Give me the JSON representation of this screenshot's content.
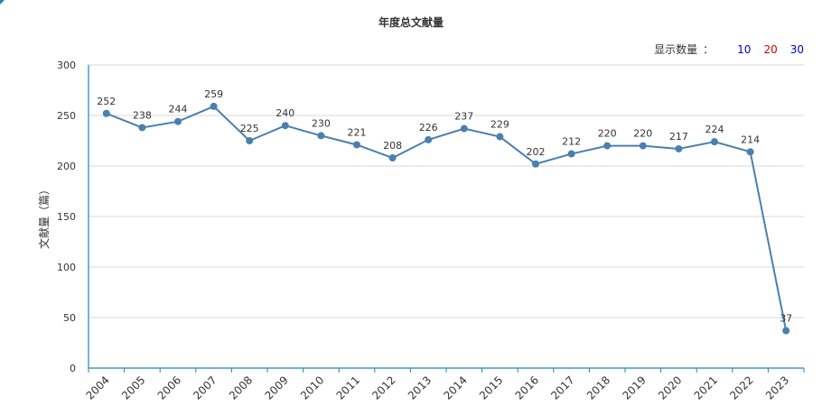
{
  "chart_data": {
    "type": "line",
    "title": "年度总文献量",
    "ylabel": "文献量（篇）",
    "xlabel": "",
    "categories": [
      "2004",
      "2005",
      "2006",
      "2007",
      "2008",
      "2009",
      "2010",
      "2011",
      "2012",
      "2013",
      "2014",
      "2015",
      "2016",
      "2017",
      "2018",
      "2019",
      "2020",
      "2021",
      "2022",
      "2023"
    ],
    "series": [
      {
        "values": [
          252,
          238,
          244,
          259,
          225,
          240,
          230,
          221,
          208,
          226,
          237,
          229,
          202,
          212,
          220,
          220,
          217,
          224,
          214,
          37
        ]
      }
    ],
    "ylim": [
      0,
      300
    ],
    "yticks": [
      "0",
      "50",
      "100",
      "150",
      "200",
      "250",
      "300"
    ],
    "grid": "horizontal",
    "legend": "none",
    "data_labels": true,
    "colors": {
      "line": "#4a7fb0",
      "point": "#4a7fb0",
      "axis": "#1a8ab5",
      "grid": "#d9d9d9",
      "text": "#333333"
    }
  },
  "display_count": {
    "label": "显示数量",
    "separator": "：",
    "options": [
      {
        "label": "10",
        "color": "#0000cc"
      },
      {
        "label": "20",
        "color": "#cc0000"
      },
      {
        "label": "30",
        "color": "#0000cc"
      }
    ]
  }
}
